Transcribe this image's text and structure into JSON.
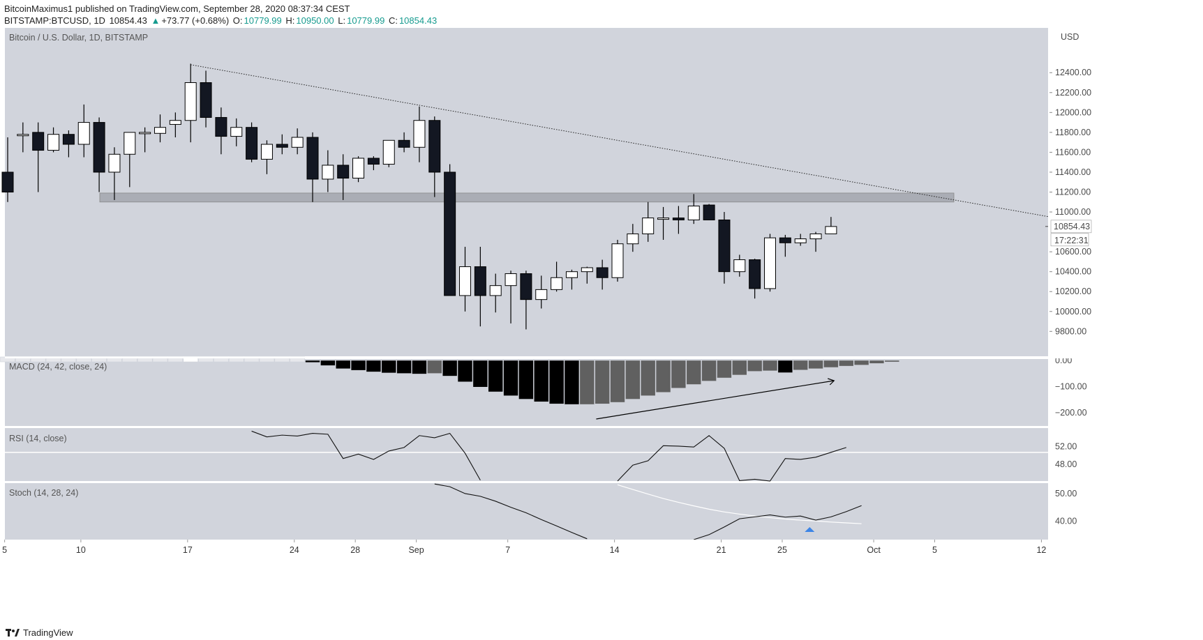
{
  "header": {
    "line1_user": "BitcoinMaximus1",
    "line1_rest": " published on TradingView.com, September 28, 2020 08:37:34 CEST",
    "symbol": "BITSTAMP:BTCUSD, 1D",
    "last": "10854.43",
    "change_arrow": "▲",
    "change": "+73.77 (+0.68%)",
    "o_label": "O:",
    "o": "10779.99",
    "h_label": "H:",
    "h": "10950.00",
    "l_label": "L:",
    "l": "10779.99",
    "c_label": "C:",
    "c": "10854.43"
  },
  "footer": {
    "brand": "TradingView"
  },
  "chart_data": {
    "type": "candlestick",
    "title": "Bitcoin / U.S. Dollar, 1D, BITSTAMP",
    "currency": "USD",
    "last_price_label": "10854.43",
    "countdown_label": "17:22:31",
    "price_ticks": [
      "12400.00",
      "12200.00",
      "12000.00",
      "11800.00",
      "11600.00",
      "11400.00",
      "11200.00",
      "11000.00",
      "10600.00",
      "10400.00",
      "10200.00",
      "10000.00",
      "9800.00"
    ],
    "price_range": [
      9550,
      12850
    ],
    "date_ticks": [
      {
        "label": "5",
        "index": -0.2
      },
      {
        "label": "10",
        "index": 4.8
      },
      {
        "label": "17",
        "index": 11.8
      },
      {
        "label": "24",
        "index": 18.8
      },
      {
        "label": "28",
        "index": 22.8
      },
      {
        "label": "Sep",
        "index": 26.8
      },
      {
        "label": "7",
        "index": 32.8
      },
      {
        "label": "14",
        "index": 39.8
      },
      {
        "label": "21",
        "index": 46.8
      },
      {
        "label": "25",
        "index": 50.8
      },
      {
        "label": "Oct",
        "index": 56.8
      },
      {
        "label": "5",
        "index": 60.8
      },
      {
        "label": "12",
        "index": 67.8
      }
    ],
    "candles": [
      [
        11400,
        11750,
        11100,
        11200
      ],
      [
        11780,
        11900,
        11600,
        11780
      ],
      [
        11800,
        11900,
        11200,
        11620
      ],
      [
        11620,
        11850,
        11600,
        11780
      ],
      [
        11780,
        11820,
        11550,
        11680
      ],
      [
        11680,
        12080,
        11550,
        11900
      ],
      [
        11900,
        11950,
        11200,
        11400
      ],
      [
        11400,
        11650,
        11120,
        11580
      ],
      [
        11580,
        11800,
        11250,
        11800
      ],
      [
        11790,
        11850,
        11600,
        11800
      ],
      [
        11790,
        11980,
        11700,
        11850
      ],
      [
        11880,
        12000,
        11750,
        11920
      ],
      [
        11920,
        12490,
        11700,
        12300
      ],
      [
        12300,
        12420,
        11850,
        11950
      ],
      [
        11950,
        12050,
        11580,
        11760
      ],
      [
        11760,
        11940,
        11660,
        11850
      ],
      [
        11850,
        11900,
        11500,
        11530
      ],
      [
        11530,
        11720,
        11380,
        11680
      ],
      [
        11680,
        11780,
        11580,
        11650
      ],
      [
        11650,
        11840,
        11580,
        11750
      ],
      [
        11750,
        11800,
        11100,
        11330
      ],
      [
        11330,
        11620,
        11200,
        11470
      ],
      [
        11470,
        11580,
        11120,
        11340
      ],
      [
        11340,
        11560,
        11300,
        11540
      ],
      [
        11540,
        11560,
        11420,
        11480
      ],
      [
        11480,
        11720,
        11450,
        11720
      ],
      [
        11720,
        11800,
        11600,
        11650
      ],
      [
        11650,
        12060,
        11500,
        11920
      ],
      [
        11920,
        11960,
        11150,
        11400
      ],
      [
        11400,
        11480,
        10160,
        10160
      ],
      [
        10160,
        10650,
        10000,
        10450
      ],
      [
        10450,
        10650,
        9850,
        10160
      ],
      [
        10160,
        10380,
        9990,
        10260
      ],
      [
        10260,
        10410,
        9880,
        10380
      ],
      [
        10380,
        10410,
        9820,
        10120
      ],
      [
        10120,
        10360,
        10030,
        10220
      ],
      [
        10220,
        10500,
        10200,
        10340
      ],
      [
        10340,
        10420,
        10220,
        10400
      ],
      [
        10400,
        10450,
        10280,
        10440
      ],
      [
        10440,
        10520,
        10220,
        10340
      ],
      [
        10340,
        10720,
        10300,
        10680
      ],
      [
        10680,
        10880,
        10600,
        10780
      ],
      [
        10780,
        11100,
        10700,
        10940
      ],
      [
        10940,
        11050,
        10720,
        10940
      ],
      [
        10940,
        11060,
        10780,
        10920
      ],
      [
        10920,
        11180,
        10880,
        11060
      ],
      [
        11070,
        11080,
        10920,
        10920
      ],
      [
        10920,
        11000,
        10280,
        10400
      ],
      [
        10400,
        10570,
        10350,
        10520
      ],
      [
        10520,
        10530,
        10130,
        10230
      ],
      [
        10230,
        10780,
        10200,
        10740
      ],
      [
        10740,
        10770,
        10550,
        10690
      ],
      [
        10690,
        10780,
        10660,
        10730
      ],
      [
        10730,
        10800,
        10600,
        10780
      ],
      [
        10780,
        10950,
        10780,
        10854
      ]
    ],
    "resistance_zone": [
      11100,
      11190
    ],
    "trendline": {
      "from": [
        12,
        12480
      ],
      "to": [
        68,
        10960
      ]
    },
    "macd": {
      "title": "MACD (24, 42, close, 24)",
      "ticks": [
        "0.00",
        "−100.00",
        "−200.00"
      ],
      "range": [
        -250,
        5
      ],
      "hist_start": 20,
      "hist": [
        -8,
        -20,
        -32,
        -38,
        -44,
        -48,
        -50,
        -52,
        -50,
        -60,
        -82,
        -102,
        -120,
        -135,
        -148,
        -158,
        -166,
        -168,
        -168,
        -166,
        -160,
        -148,
        -135,
        -122,
        -106,
        -92,
        -79,
        -67,
        -56,
        -42,
        -40,
        -47,
        -37,
        -32,
        -27,
        -22,
        -18,
        -12,
        -6
      ],
      "color_dark": "#000000",
      "color_gray": "#606060"
    },
    "rsi": {
      "title": "RSI (14, close)",
      "ticks": [
        "52.00",
        "48.00"
      ],
      "range": [
        44.2,
        56.2
      ],
      "level": 50.7,
      "values": [
        null,
        null,
        null,
        null,
        null,
        null,
        null,
        null,
        null,
        null,
        null,
        null,
        null,
        null,
        null,
        null,
        55.5,
        54.2,
        54.6,
        54.4,
        55.0,
        54.8,
        49.3,
        50.3,
        49.1,
        51.0,
        51.8,
        54.5,
        54.0,
        55.0,
        50.5,
        44.4,
        null,
        null,
        null,
        null,
        null,
        null,
        null,
        null,
        44.2,
        47.8,
        48.8,
        52.2,
        52.1,
        51.9,
        54.5,
        51.6,
        44.3,
        44.6,
        44.0,
        49.3,
        49.1,
        49.6,
        50.7,
        51.8
      ]
    },
    "stoch": {
      "title": "Stoch (14, 28, 24)",
      "ticks": [
        "50.00",
        "40.00"
      ],
      "range": [
        33.2,
        53.8
      ],
      "k": [
        null,
        null,
        null,
        null,
        null,
        null,
        null,
        null,
        null,
        null,
        null,
        null,
        null,
        null,
        null,
        null,
        null,
        null,
        null,
        null,
        null,
        null,
        null,
        null,
        null,
        null,
        null,
        null,
        53.5,
        52.5,
        50.0,
        49.0,
        47.2,
        45.0,
        43.0,
        40.5,
        38.2,
        35.8,
        33.5,
        null,
        null,
        null,
        null,
        null,
        null,
        32.5,
        35.0,
        37.8,
        40.8,
        41.5,
        42.2,
        41.4,
        41.8,
        40.3,
        41.5,
        43.4,
        45.6
      ],
      "d": [
        null,
        null,
        null,
        null,
        null,
        null,
        null,
        null,
        null,
        null,
        null,
        null,
        null,
        null,
        null,
        null,
        null,
        null,
        null,
        null,
        null,
        null,
        null,
        null,
        null,
        null,
        null,
        null,
        null,
        null,
        null,
        null,
        null,
        null,
        null,
        null,
        null,
        null,
        null,
        null,
        53.2,
        51.5,
        49.8,
        48.2,
        46.8,
        45.5,
        44.3,
        43.3,
        42.5,
        41.8,
        41.2,
        40.7,
        40.3,
        40.0,
        39.6,
        39.3,
        39.0
      ]
    }
  }
}
